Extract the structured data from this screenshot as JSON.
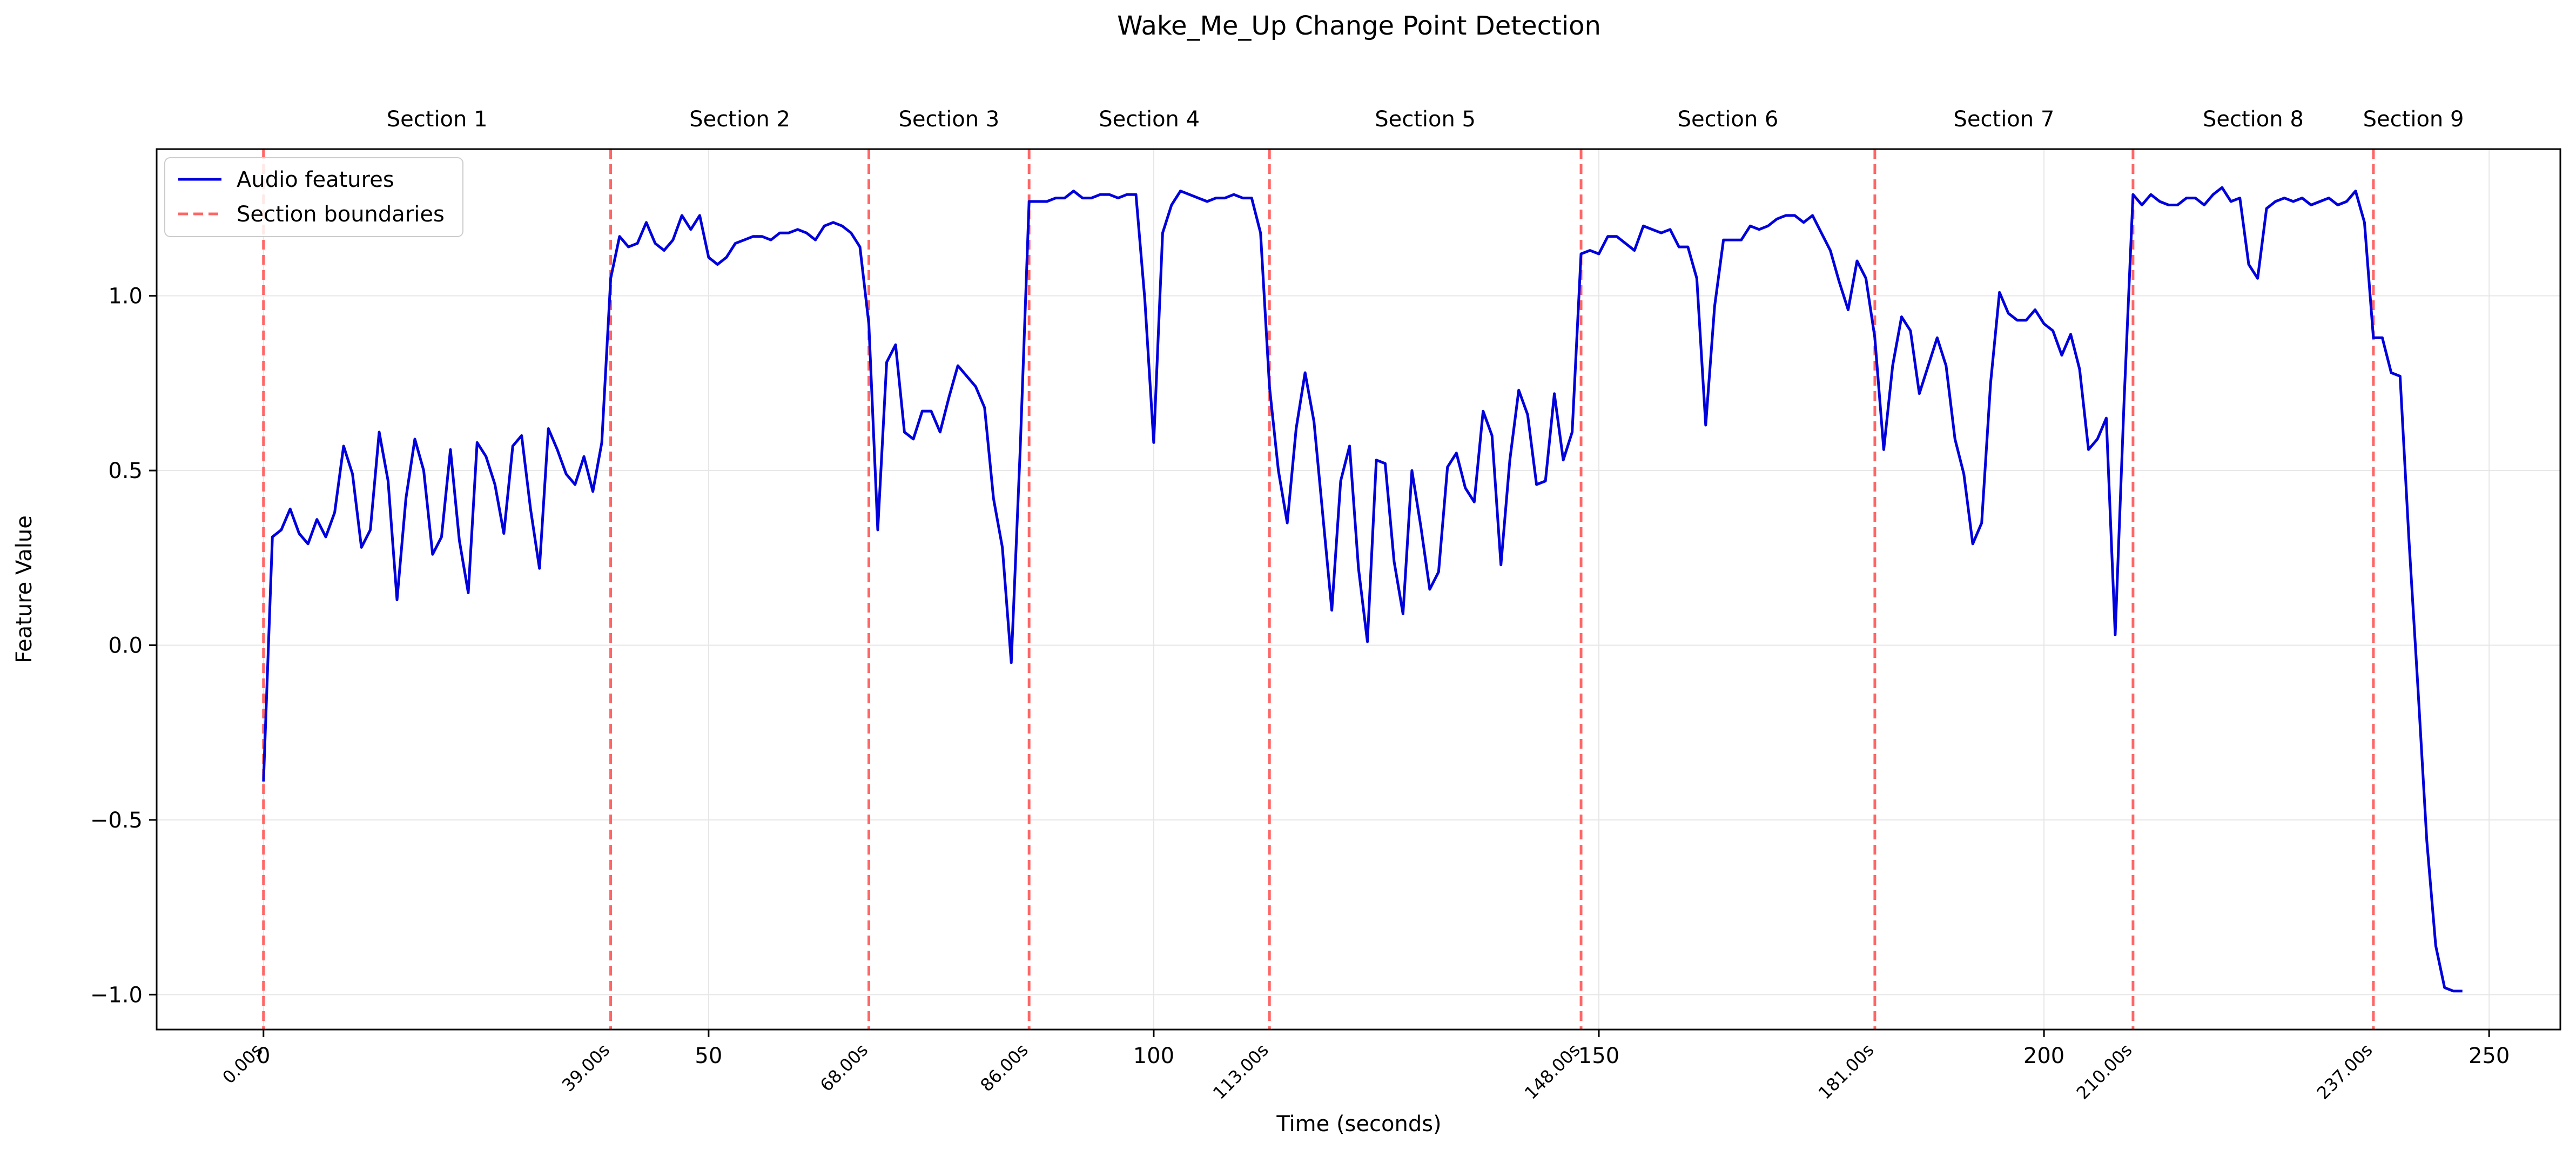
{
  "chart_data": {
    "type": "line",
    "title": "Wake_Me_Up Change Point Detection",
    "xlabel": "Time (seconds)",
    "ylabel": "Feature Value",
    "xlim": [
      -12,
      258
    ],
    "ylim": [
      -1.1,
      1.42
    ],
    "xticks": [
      0,
      50,
      100,
      150,
      200,
      250
    ],
    "xtick_labels": [
      "0",
      "50",
      "100",
      "150",
      "200",
      "250"
    ],
    "yticks": [
      -1.0,
      -0.5,
      0.0,
      0.5,
      1.0
    ],
    "ytick_labels": [
      "−1.0",
      "−0.5",
      "0.0",
      "0.5",
      "1.0"
    ],
    "grid": true,
    "legend": {
      "placement": "top-left",
      "entries": [
        {
          "label": "Audio features",
          "color": "#0000dd",
          "style": "solid"
        },
        {
          "label": "Section boundaries",
          "color": "#ff6666",
          "style": "dashed"
        }
      ]
    },
    "boundaries": [
      0,
      39,
      68,
      86,
      113,
      148,
      181,
      210,
      237
    ],
    "boundary_labels": [
      "0.00s",
      "39.00s",
      "68.00s",
      "86.00s",
      "113.00s",
      "148.00s",
      "181.00s",
      "210.00s",
      "237.00s"
    ],
    "sections": [
      {
        "label": "Section 1",
        "center": 19.5
      },
      {
        "label": "Section 2",
        "center": 53.5
      },
      {
        "label": "Section 3",
        "center": 77
      },
      {
        "label": "Section 4",
        "center": 99.5
      },
      {
        "label": "Section 5",
        "center": 130.5
      },
      {
        "label": "Section 6",
        "center": 164.5
      },
      {
        "label": "Section 7",
        "center": 195.5
      },
      {
        "label": "Section 8",
        "center": 223.5
      },
      {
        "label": "Section 9",
        "center": 241.5
      }
    ],
    "series": [
      {
        "name": "Audio features",
        "color": "#0000dd",
        "points": [
          [
            0,
            -0.39
          ],
          [
            1,
            0.31
          ],
          [
            2,
            0.33
          ],
          [
            3,
            0.39
          ],
          [
            4,
            0.32
          ],
          [
            5,
            0.29
          ],
          [
            6,
            0.36
          ],
          [
            7,
            0.31
          ],
          [
            8,
            0.38
          ],
          [
            9,
            0.57
          ],
          [
            10,
            0.49
          ],
          [
            11,
            0.28
          ],
          [
            12,
            0.33
          ],
          [
            13,
            0.61
          ],
          [
            14,
            0.47
          ],
          [
            15,
            0.13
          ],
          [
            16,
            0.42
          ],
          [
            17,
            0.59
          ],
          [
            18,
            0.5
          ],
          [
            19,
            0.26
          ],
          [
            20,
            0.31
          ],
          [
            21,
            0.56
          ],
          [
            22,
            0.3
          ],
          [
            23,
            0.15
          ],
          [
            24,
            0.58
          ],
          [
            25,
            0.54
          ],
          [
            26,
            0.46
          ],
          [
            27,
            0.32
          ],
          [
            28,
            0.57
          ],
          [
            29,
            0.6
          ],
          [
            30,
            0.39
          ],
          [
            31,
            0.22
          ],
          [
            32,
            0.62
          ],
          [
            33,
            0.56
          ],
          [
            34,
            0.49
          ],
          [
            35,
            0.46
          ],
          [
            36,
            0.54
          ],
          [
            37,
            0.44
          ],
          [
            38,
            0.58
          ],
          [
            39,
            1.05
          ],
          [
            40,
            1.17
          ],
          [
            41,
            1.14
          ],
          [
            42,
            1.15
          ],
          [
            43,
            1.21
          ],
          [
            44,
            1.15
          ],
          [
            45,
            1.13
          ],
          [
            46,
            1.16
          ],
          [
            47,
            1.23
          ],
          [
            48,
            1.19
          ],
          [
            49,
            1.23
          ],
          [
            50,
            1.11
          ],
          [
            51,
            1.09
          ],
          [
            52,
            1.11
          ],
          [
            53,
            1.15
          ],
          [
            54,
            1.16
          ],
          [
            55,
            1.17
          ],
          [
            56,
            1.17
          ],
          [
            57,
            1.16
          ],
          [
            58,
            1.18
          ],
          [
            59,
            1.18
          ],
          [
            60,
            1.19
          ],
          [
            61,
            1.18
          ],
          [
            62,
            1.16
          ],
          [
            63,
            1.2
          ],
          [
            64,
            1.21
          ],
          [
            65,
            1.2
          ],
          [
            66,
            1.18
          ],
          [
            67,
            1.14
          ],
          [
            68,
            0.92
          ],
          [
            69,
            0.33
          ],
          [
            70,
            0.81
          ],
          [
            71,
            0.86
          ],
          [
            72,
            0.61
          ],
          [
            73,
            0.59
          ],
          [
            74,
            0.67
          ],
          [
            75,
            0.67
          ],
          [
            76,
            0.61
          ],
          [
            77,
            0.71
          ],
          [
            78,
            0.8
          ],
          [
            79,
            0.77
          ],
          [
            80,
            0.74
          ],
          [
            81,
            0.68
          ],
          [
            82,
            0.42
          ],
          [
            83,
            0.28
          ],
          [
            84,
            -0.05
          ],
          [
            85,
            0.56
          ],
          [
            86,
            1.27
          ],
          [
            87,
            1.27
          ],
          [
            88,
            1.27
          ],
          [
            89,
            1.28
          ],
          [
            90,
            1.28
          ],
          [
            91,
            1.3
          ],
          [
            92,
            1.28
          ],
          [
            93,
            1.28
          ],
          [
            94,
            1.29
          ],
          [
            95,
            1.29
          ],
          [
            96,
            1.28
          ],
          [
            97,
            1.29
          ],
          [
            98,
            1.29
          ],
          [
            99,
            0.99
          ],
          [
            100,
            0.58
          ],
          [
            101,
            1.18
          ],
          [
            102,
            1.26
          ],
          [
            103,
            1.3
          ],
          [
            104,
            1.29
          ],
          [
            105,
            1.28
          ],
          [
            106,
            1.27
          ],
          [
            107,
            1.28
          ],
          [
            108,
            1.28
          ],
          [
            109,
            1.29
          ],
          [
            110,
            1.28
          ],
          [
            111,
            1.28
          ],
          [
            112,
            1.18
          ],
          [
            113,
            0.74
          ],
          [
            114,
            0.5
          ],
          [
            115,
            0.35
          ],
          [
            116,
            0.62
          ],
          [
            117,
            0.78
          ],
          [
            118,
            0.64
          ],
          [
            119,
            0.37
          ],
          [
            120,
            0.1
          ],
          [
            121,
            0.47
          ],
          [
            122,
            0.57
          ],
          [
            123,
            0.22
          ],
          [
            124,
            0.01
          ],
          [
            125,
            0.53
          ],
          [
            126,
            0.52
          ],
          [
            127,
            0.24
          ],
          [
            128,
            0.09
          ],
          [
            129,
            0.5
          ],
          [
            130,
            0.34
          ],
          [
            131,
            0.16
          ],
          [
            132,
            0.21
          ],
          [
            133,
            0.51
          ],
          [
            134,
            0.55
          ],
          [
            135,
            0.45
          ],
          [
            136,
            0.41
          ],
          [
            137,
            0.67
          ],
          [
            138,
            0.6
          ],
          [
            139,
            0.23
          ],
          [
            140,
            0.53
          ],
          [
            141,
            0.73
          ],
          [
            142,
            0.66
          ],
          [
            143,
            0.46
          ],
          [
            144,
            0.47
          ],
          [
            145,
            0.72
          ],
          [
            146,
            0.53
          ],
          [
            147,
            0.61
          ],
          [
            148,
            1.12
          ],
          [
            149,
            1.13
          ],
          [
            150,
            1.12
          ],
          [
            151,
            1.17
          ],
          [
            152,
            1.17
          ],
          [
            153,
            1.15
          ],
          [
            154,
            1.13
          ],
          [
            155,
            1.2
          ],
          [
            156,
            1.19
          ],
          [
            157,
            1.18
          ],
          [
            158,
            1.19
          ],
          [
            159,
            1.14
          ],
          [
            160,
            1.14
          ],
          [
            161,
            1.05
          ],
          [
            162,
            0.63
          ],
          [
            163,
            0.97
          ],
          [
            164,
            1.16
          ],
          [
            165,
            1.16
          ],
          [
            166,
            1.16
          ],
          [
            167,
            1.2
          ],
          [
            168,
            1.19
          ],
          [
            169,
            1.2
          ],
          [
            170,
            1.22
          ],
          [
            171,
            1.23
          ],
          [
            172,
            1.23
          ],
          [
            173,
            1.21
          ],
          [
            174,
            1.23
          ],
          [
            175,
            1.18
          ],
          [
            176,
            1.13
          ],
          [
            177,
            1.04
          ],
          [
            178,
            0.96
          ],
          [
            179,
            1.1
          ],
          [
            180,
            1.05
          ],
          [
            181,
            0.88
          ],
          [
            182,
            0.56
          ],
          [
            183,
            0.8
          ],
          [
            184,
            0.94
          ],
          [
            185,
            0.9
          ],
          [
            186,
            0.72
          ],
          [
            187,
            0.8
          ],
          [
            188,
            0.88
          ],
          [
            189,
            0.8
          ],
          [
            190,
            0.59
          ],
          [
            191,
            0.49
          ],
          [
            192,
            0.29
          ],
          [
            193,
            0.35
          ],
          [
            194,
            0.75
          ],
          [
            195,
            1.01
          ],
          [
            196,
            0.95
          ],
          [
            197,
            0.93
          ],
          [
            198,
            0.93
          ],
          [
            199,
            0.96
          ],
          [
            200,
            0.92
          ],
          [
            201,
            0.9
          ],
          [
            202,
            0.83
          ],
          [
            203,
            0.89
          ],
          [
            204,
            0.79
          ],
          [
            205,
            0.56
          ],
          [
            206,
            0.59
          ],
          [
            207,
            0.65
          ],
          [
            208,
            0.03
          ],
          [
            209,
            0.7
          ],
          [
            210,
            1.29
          ],
          [
            211,
            1.26
          ],
          [
            212,
            1.29
          ],
          [
            213,
            1.27
          ],
          [
            214,
            1.26
          ],
          [
            215,
            1.26
          ],
          [
            216,
            1.28
          ],
          [
            217,
            1.28
          ],
          [
            218,
            1.26
          ],
          [
            219,
            1.29
          ],
          [
            220,
            1.31
          ],
          [
            221,
            1.27
          ],
          [
            222,
            1.28
          ],
          [
            223,
            1.09
          ],
          [
            224,
            1.05
          ],
          [
            225,
            1.25
          ],
          [
            226,
            1.27
          ],
          [
            227,
            1.28
          ],
          [
            228,
            1.27
          ],
          [
            229,
            1.28
          ],
          [
            230,
            1.26
          ],
          [
            231,
            1.27
          ],
          [
            232,
            1.28
          ],
          [
            233,
            1.26
          ],
          [
            234,
            1.27
          ],
          [
            235,
            1.3
          ],
          [
            236,
            1.21
          ],
          [
            237,
            0.88
          ],
          [
            238,
            0.88
          ],
          [
            239,
            0.78
          ],
          [
            240,
            0.77
          ],
          [
            241,
            0.3
          ],
          [
            242,
            -0.12
          ],
          [
            243,
            -0.56
          ],
          [
            244,
            -0.86
          ],
          [
            245,
            -0.98
          ],
          [
            246,
            -0.99
          ],
          [
            247,
            -0.99
          ]
        ]
      }
    ]
  }
}
